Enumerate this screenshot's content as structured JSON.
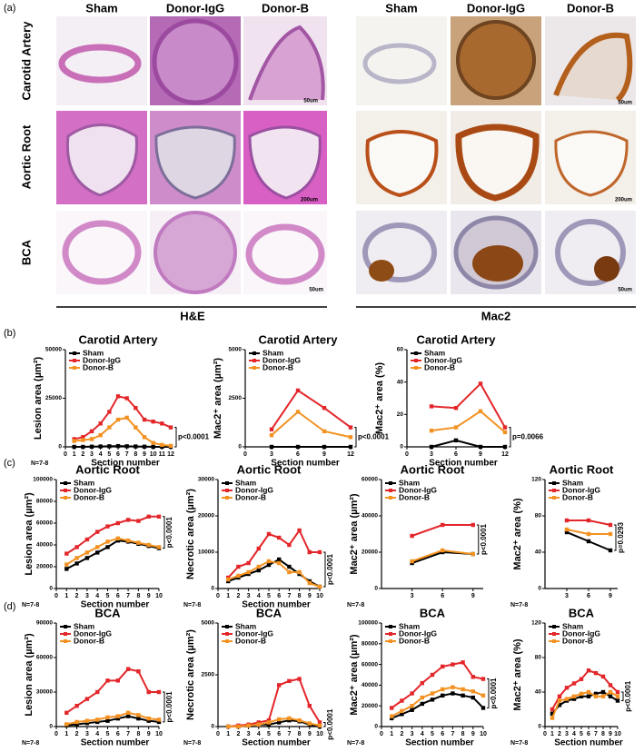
{
  "panel_a": {
    "label": "(a)",
    "columns": [
      "Sham",
      "Donor-IgG",
      "Donor-B"
    ],
    "rows": [
      "Carotid Artery",
      "Aortic Root",
      "BCA"
    ],
    "stains": [
      "H&E",
      "Mac2"
    ],
    "scale_bars": [
      "50um",
      "200um",
      "50um"
    ]
  },
  "panel_labels": [
    "(b)",
    "(c)",
    "(d)"
  ],
  "chart_data": [
    {
      "type": "line",
      "title": "Carotid Artery",
      "ylabel": "Lesion area (µm²)",
      "xlabel": "Section number",
      "note": "N=7-8",
      "p_value": "p<0.0001",
      "p_rotated": false,
      "legend": "upper left",
      "x": [
        1,
        2,
        3,
        4,
        5,
        6,
        7,
        8,
        9,
        10,
        11,
        12
      ],
      "xlim": [
        0,
        12
      ],
      "xticks": [
        0,
        1,
        2,
        3,
        4,
        5,
        6,
        7,
        8,
        9,
        10,
        11,
        12
      ],
      "ylim": [
        0,
        50000
      ],
      "yticks": [
        0,
        25000,
        50000
      ],
      "series": [
        {
          "name": "Sham",
          "color": "#000000",
          "values": [
            0,
            0,
            100,
            200,
            300,
            400,
            300,
            200,
            100,
            0,
            0,
            0
          ]
        },
        {
          "name": "Donor-IgG",
          "color": "#e3262a",
          "values": [
            4000,
            5000,
            8000,
            12000,
            18000,
            26000,
            25000,
            20000,
            14000,
            13000,
            12000,
            10000
          ]
        },
        {
          "name": "Donor-B",
          "color": "#f39222",
          "values": [
            3000,
            3500,
            4000,
            6000,
            10000,
            14000,
            15000,
            10000,
            5000,
            2000,
            1000,
            500
          ]
        }
      ]
    },
    {
      "type": "line",
      "title": "Carotid Artery",
      "ylabel": "Mac2⁺ area (µm²)",
      "xlabel": "Section number",
      "p_value": "p<0.0001",
      "p_rotated": false,
      "legend": "upper left",
      "x": [
        3,
        6,
        9,
        12
      ],
      "xlim": [
        0,
        12
      ],
      "xticks": [
        0,
        3,
        6,
        9,
        12
      ],
      "ylim": [
        0,
        5000
      ],
      "yticks": [
        0,
        2500,
        5000
      ],
      "series": [
        {
          "name": "Sham",
          "color": "#000000",
          "values": [
            0,
            0,
            0,
            0
          ]
        },
        {
          "name": "Donor-IgG",
          "color": "#e3262a",
          "values": [
            900,
            2900,
            2000,
            1000
          ]
        },
        {
          "name": "Donor-B",
          "color": "#f39222",
          "values": [
            600,
            1800,
            800,
            500
          ]
        }
      ]
    },
    {
      "type": "line",
      "title": "Carotid Artery",
      "ylabel": "Mac2⁺ area (%)",
      "xlabel": "Section number",
      "p_value": "p=0.0066",
      "p_rotated": false,
      "legend": "upper left",
      "x": [
        3,
        6,
        9,
        12
      ],
      "xlim": [
        0,
        12
      ],
      "xticks": [
        0,
        3,
        6,
        9,
        12
      ],
      "ylim": [
        0,
        60
      ],
      "yticks": [
        0,
        20,
        40,
        60
      ],
      "series": [
        {
          "name": "Sham",
          "color": "#000000",
          "values": [
            0,
            4,
            0,
            0
          ]
        },
        {
          "name": "Donor-IgG",
          "color": "#e3262a",
          "values": [
            25,
            24,
            39,
            12
          ]
        },
        {
          "name": "Donor-B",
          "color": "#f39222",
          "values": [
            10,
            12,
            22,
            9
          ]
        }
      ]
    },
    {
      "type": "line",
      "title": "Aortic Root",
      "ylabel": "Lesion area (µm²)",
      "xlabel": "Section number",
      "note": "N=7-8",
      "p_value": "p<0.0001",
      "p_rotated": true,
      "legend": "upper left",
      "x": [
        1,
        2,
        3,
        4,
        5,
        6,
        7,
        8,
        9,
        10
      ],
      "xlim": [
        0,
        10
      ],
      "xticks": [
        0,
        1,
        2,
        3,
        4,
        5,
        6,
        7,
        8,
        9,
        10
      ],
      "ylim": [
        0,
        100000
      ],
      "yticks": [
        0,
        20000,
        40000,
        60000,
        80000,
        100000
      ],
      "series": [
        {
          "name": "Sham",
          "color": "#000000",
          "values": [
            18000,
            23000,
            28000,
            33000,
            38000,
            44000,
            43000,
            41000,
            39000,
            37000
          ]
        },
        {
          "name": "Donor-IgG",
          "color": "#e3262a",
          "values": [
            32000,
            38000,
            45000,
            52000,
            57000,
            60000,
            63000,
            62000,
            66000,
            66000
          ]
        },
        {
          "name": "Donor-B",
          "color": "#f39222",
          "values": [
            22000,
            28000,
            33000,
            38000,
            43000,
            46000,
            44000,
            42000,
            40000,
            38000
          ]
        }
      ]
    },
    {
      "type": "line",
      "title": "Aortic Root",
      "ylabel": "Necrotic area (µm²)",
      "xlabel": "Section number",
      "note": "N=7-8",
      "p_value": "p<0.0001",
      "p_rotated": true,
      "legend": "upper left",
      "x": [
        1,
        2,
        3,
        4,
        5,
        6,
        7,
        8,
        9,
        10
      ],
      "xlim": [
        0,
        10
      ],
      "xticks": [
        0,
        1,
        2,
        3,
        4,
        5,
        6,
        7,
        8,
        9,
        10
      ],
      "ylim": [
        0,
        30000
      ],
      "yticks": [
        0,
        10000,
        20000,
        30000
      ],
      "series": [
        {
          "name": "Sham",
          "color": "#000000",
          "values": [
            2000,
            3000,
            4000,
            5000,
            6500,
            8000,
            6000,
            4000,
            2000,
            500
          ]
        },
        {
          "name": "Donor-IgG",
          "color": "#e3262a",
          "values": [
            3000,
            6000,
            7000,
            11000,
            15000,
            14000,
            12000,
            16000,
            10000,
            10000
          ]
        },
        {
          "name": "Donor-B",
          "color": "#f39222",
          "values": [
            2500,
            3500,
            4500,
            6000,
            7500,
            7000,
            4500,
            4500,
            1500,
            500
          ]
        }
      ]
    },
    {
      "type": "line",
      "title": "Aortic Root",
      "ylabel": "Mac2⁺ area (µm²)",
      "note": "N=7-8",
      "p_value": "p<0.0001",
      "p_rotated": true,
      "legend": "upper left",
      "x": [
        3,
        6,
        9
      ],
      "xlim": [
        0,
        10
      ],
      "xticks": [
        3,
        6,
        9
      ],
      "ylim": [
        0,
        60000
      ],
      "yticks": [
        0,
        20000,
        40000,
        60000
      ],
      "series": [
        {
          "name": "Sham",
          "color": "#000000",
          "values": [
            14000,
            20000,
            19000
          ]
        },
        {
          "name": "Donor-IgG",
          "color": "#e3262a",
          "values": [
            29000,
            35000,
            35000
          ]
        },
        {
          "name": "Donor-B",
          "color": "#f39222",
          "values": [
            15000,
            21000,
            19000
          ]
        }
      ]
    },
    {
      "type": "line",
      "title": "Aortic Root",
      "ylabel": "Mac2⁺ area (%)",
      "note": "N=7-8",
      "p_value": "p=0.0293",
      "p_rotated": true,
      "legend": "upper left",
      "x": [
        3,
        6,
        9
      ],
      "xlim": [
        0,
        10
      ],
      "xticks": [
        3,
        6,
        9
      ],
      "ylim": [
        0,
        120
      ],
      "yticks": [
        0,
        40,
        80,
        120
      ],
      "series": [
        {
          "name": "Sham",
          "color": "#000000",
          "values": [
            62,
            52,
            42
          ]
        },
        {
          "name": "Donor-IgG",
          "color": "#e3262a",
          "values": [
            75,
            75,
            70
          ]
        },
        {
          "name": "Donor-B",
          "color": "#f39222",
          "values": [
            65,
            60,
            60
          ]
        }
      ]
    },
    {
      "type": "line",
      "title": "BCA",
      "ylabel": "Lesion area (µm²)",
      "xlabel": "Section number",
      "note": "N=7-8",
      "p_value": "p<0.0001",
      "p_rotated": true,
      "legend": "upper left",
      "x": [
        1,
        2,
        3,
        4,
        5,
        6,
        7,
        8,
        9,
        10
      ],
      "xlim": [
        0,
        10
      ],
      "xticks": [
        0,
        1,
        2,
        3,
        4,
        5,
        6,
        7,
        8,
        9,
        10
      ],
      "ylim": [
        0,
        90000
      ],
      "yticks": [
        0,
        30000,
        60000,
        90000
      ],
      "series": [
        {
          "name": "Sham",
          "color": "#000000",
          "values": [
            1000,
            2000,
            3000,
            4000,
            5000,
            7000,
            9000,
            7000,
            5000,
            4000
          ]
        },
        {
          "name": "Donor-IgG",
          "color": "#e3262a",
          "values": [
            12000,
            18000,
            24000,
            30000,
            40000,
            40000,
            50000,
            48000,
            30000,
            30000
          ]
        },
        {
          "name": "Donor-B",
          "color": "#f39222",
          "values": [
            2000,
            4000,
            5000,
            6000,
            8000,
            9000,
            12000,
            10000,
            7000,
            6000
          ]
        }
      ]
    },
    {
      "type": "line",
      "title": "BCA",
      "ylabel": "Necrotic area (µm²)",
      "xlabel": "Section number",
      "note": "N=7-8",
      "p_value": "p<0.0001",
      "p_rotated": true,
      "legend": "upper left",
      "x": [
        1,
        2,
        3,
        4,
        5,
        6,
        7,
        8,
        9,
        10
      ],
      "xlim": [
        0,
        10
      ],
      "xticks": [
        0,
        1,
        2,
        3,
        4,
        5,
        6,
        7,
        8,
        9,
        10
      ],
      "ylim": [
        0,
        5000
      ],
      "yticks": [
        0,
        2500,
        5000
      ],
      "series": [
        {
          "name": "Sham",
          "color": "#000000",
          "values": [
            0,
            0,
            50,
            100,
            100,
            200,
            300,
            250,
            100,
            0
          ]
        },
        {
          "name": "Donor-IgG",
          "color": "#e3262a",
          "values": [
            0,
            50,
            100,
            200,
            300,
            2000,
            2200,
            2300,
            1000,
            200
          ]
        },
        {
          "name": "Donor-B",
          "color": "#f39222",
          "values": [
            0,
            0,
            50,
            100,
            200,
            350,
            400,
            300,
            150,
            50
          ]
        }
      ]
    },
    {
      "type": "line",
      "title": "BCA",
      "ylabel": "Mac2⁺ area (µm²)",
      "xlabel": "Section number",
      "note": "N=7-8",
      "p_value": "p<0.0001",
      "p_rotated": true,
      "legend": "upper left",
      "x": [
        1,
        2,
        3,
        4,
        5,
        6,
        7,
        8,
        9,
        10
      ],
      "xlim": [
        0,
        10
      ],
      "xticks": [
        0,
        1,
        2,
        3,
        4,
        5,
        6,
        7,
        8,
        9,
        10
      ],
      "ylim": [
        0,
        100000
      ],
      "yticks": [
        0,
        20000,
        40000,
        60000,
        80000,
        100000
      ],
      "series": [
        {
          "name": "Sham",
          "color": "#000000",
          "values": [
            8000,
            12000,
            16000,
            22000,
            26000,
            30000,
            32000,
            30000,
            28000,
            18000
          ]
        },
        {
          "name": "Donor-IgG",
          "color": "#e3262a",
          "values": [
            18000,
            25000,
            32000,
            42000,
            50000,
            58000,
            60000,
            62000,
            48000,
            46000
          ]
        },
        {
          "name": "Donor-B",
          "color": "#f39222",
          "values": [
            10000,
            15000,
            20000,
            28000,
            32000,
            36000,
            38000,
            36000,
            34000,
            30000
          ]
        }
      ]
    },
    {
      "type": "line",
      "title": "BCA",
      "ylabel": "Mac2⁺ area (%)",
      "xlabel": "Section number",
      "note": "N=7-8",
      "p_value": "p<0.0001",
      "p_rotated": true,
      "legend": "upper left",
      "x": [
        1,
        2,
        3,
        4,
        5,
        6,
        7,
        8,
        9,
        10
      ],
      "xlim": [
        0,
        10
      ],
      "xticks": [
        0,
        1,
        2,
        3,
        4,
        5,
        6,
        7,
        8,
        9,
        10
      ],
      "ylim": [
        0,
        120
      ],
      "yticks": [
        0,
        40,
        80,
        120
      ],
      "series": [
        {
          "name": "Sham",
          "color": "#000000",
          "values": [
            15,
            25,
            30,
            32,
            35,
            35,
            38,
            40,
            35,
            30
          ]
        },
        {
          "name": "Donor-IgG",
          "color": "#e3262a",
          "values": [
            20,
            35,
            45,
            50,
            55,
            65,
            62,
            58,
            48,
            40
          ]
        },
        {
          "name": "Donor-B",
          "color": "#f39222",
          "values": [
            10,
            30,
            32,
            35,
            38,
            40,
            35,
            35,
            40,
            35
          ]
        }
      ]
    }
  ]
}
